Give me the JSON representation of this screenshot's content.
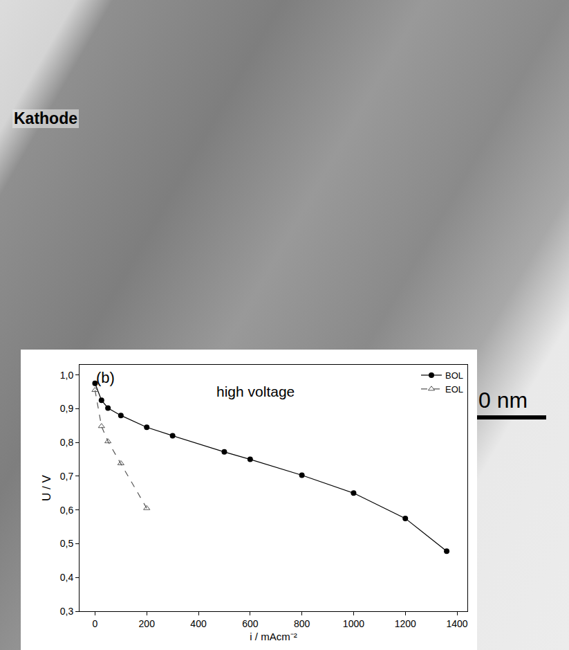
{
  "chart_data": {
    "type": "line",
    "x_label": "i / mAcm⁻²",
    "y_label": "U / V",
    "panel_label": "(b)",
    "annotations": [
      "high voltage"
    ],
    "series": [
      {
        "name": "BOL",
        "color": "#000000",
        "marker": "circle",
        "line_style": "solid",
        "x": [
          0,
          25,
          50,
          100,
          200,
          300,
          500,
          600,
          800,
          1000,
          1200,
          1360
        ],
        "values": [
          0.975,
          0.925,
          0.902,
          0.88,
          0.845,
          0.82,
          0.772,
          0.75,
          0.703,
          0.65,
          0.575,
          0.478
        ]
      },
      {
        "name": "EOL",
        "color": "#555555",
        "marker": "triangle-up-open",
        "line_style": "dash",
        "x": [
          0,
          25,
          50,
          100,
          200
        ],
        "values": [
          0.955,
          0.848,
          0.803,
          0.738,
          0.605
        ]
      }
    ],
    "xlim": [
      -60,
      1440
    ],
    "xticks": [
      0,
      200,
      400,
      600,
      800,
      1000,
      1200,
      1400
    ],
    "ylim": [
      0.3,
      1.03
    ],
    "yticks": [
      {
        "value": 0.3,
        "label": "0,3"
      },
      {
        "value": 0.4,
        "label": "0,4"
      },
      {
        "value": 0.5,
        "label": "0,5"
      },
      {
        "value": 0.6,
        "label": "0,6"
      },
      {
        "value": 0.7,
        "label": "0,7"
      },
      {
        "value": 0.8,
        "label": "0,8"
      },
      {
        "value": 0.9,
        "label": "0,9"
      },
      {
        "value": 1.0,
        "label": "1,0"
      }
    ],
    "grid": false,
    "legend": "upper right"
  },
  "background": {
    "label": "Kathode",
    "scale_bar": "0 nm"
  }
}
